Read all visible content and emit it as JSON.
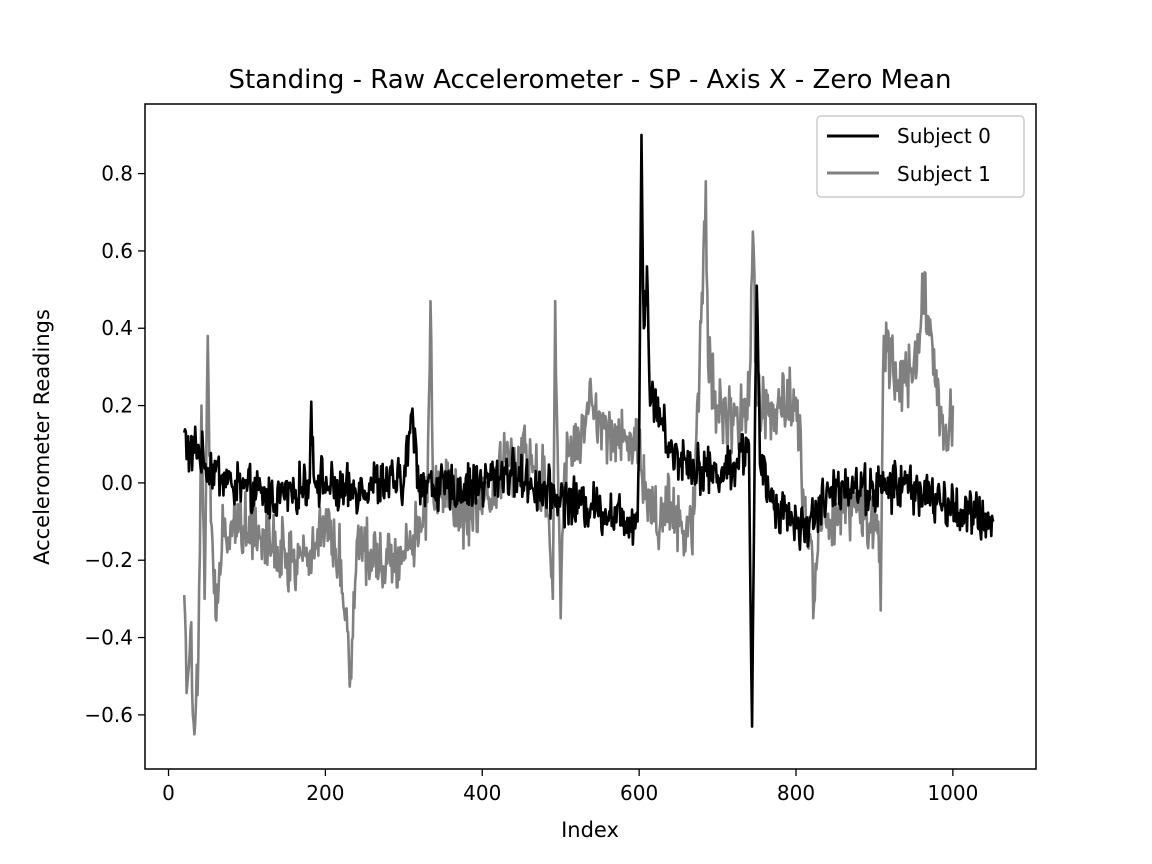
{
  "chart_data": {
    "type": "line",
    "title": "Standing - Raw Accelerometer - SP - Axis X - Zero Mean",
    "xlabel": "Index",
    "ylabel": "Accelerometer Readings",
    "xlim": [
      -30,
      1106
    ],
    "ylim": [
      -0.74,
      0.98
    ],
    "xticks": [
      0,
      200,
      400,
      600,
      800,
      1000
    ],
    "xtick_labels": [
      "0",
      "200",
      "400",
      "600",
      "800",
      "1000"
    ],
    "yticks": [
      -0.6,
      -0.4,
      -0.2,
      0.0,
      0.2,
      0.4,
      0.6,
      0.8
    ],
    "ytick_labels": [
      "−0.6",
      "−0.4",
      "−0.2",
      "0.0",
      "0.2",
      "0.4",
      "0.6",
      "0.8"
    ],
    "grid": false,
    "legend_position": "top-right",
    "series": [
      {
        "name": "Subject 0",
        "label": "Subject 0",
        "color": "#000000",
        "x_start": 20,
        "x_end": 1052,
        "anchors": [
          [
            20,
            0.13
          ],
          [
            28,
            0.06
          ],
          [
            35,
            0.1
          ],
          [
            45,
            0.05
          ],
          [
            60,
            0.03
          ],
          [
            80,
            0.0
          ],
          [
            100,
            -0.02
          ],
          [
            130,
            -0.04
          ],
          [
            160,
            -0.02
          ],
          [
            180,
            0.0
          ],
          [
            182,
            0.21
          ],
          [
            185,
            0.02
          ],
          [
            220,
            -0.03
          ],
          [
            260,
            0.0
          ],
          [
            300,
            0.0
          ],
          [
            310,
            0.18
          ],
          [
            320,
            0.0
          ],
          [
            360,
            -0.02
          ],
          [
            400,
            0.0
          ],
          [
            430,
            0.03
          ],
          [
            460,
            0.0
          ],
          [
            500,
            -0.04
          ],
          [
            540,
            -0.06
          ],
          [
            570,
            -0.08
          ],
          [
            598,
            -0.1
          ],
          [
            600,
            0.1
          ],
          [
            603,
            0.9
          ],
          [
            606,
            0.4
          ],
          [
            610,
            0.56
          ],
          [
            614,
            0.2
          ],
          [
            620,
            0.22
          ],
          [
            640,
            0.08
          ],
          [
            660,
            0.06
          ],
          [
            680,
            0.04
          ],
          [
            700,
            0.02
          ],
          [
            720,
            0.05
          ],
          [
            740,
            0.1
          ],
          [
            744,
            -0.63
          ],
          [
            747,
            0.0
          ],
          [
            750,
            0.51
          ],
          [
            754,
            0.05
          ],
          [
            770,
            -0.05
          ],
          [
            790,
            -0.08
          ],
          [
            810,
            -0.12
          ],
          [
            830,
            -0.06
          ],
          [
            860,
            0.0
          ],
          [
            900,
            -0.02
          ],
          [
            940,
            0.0
          ],
          [
            980,
            -0.05
          ],
          [
            1020,
            -0.08
          ],
          [
            1052,
            -0.1
          ]
        ],
        "noise": 0.05
      },
      {
        "name": "Subject 1",
        "label": "Subject 1",
        "color": "#808080",
        "x_start": 20,
        "x_end": 1000,
        "anchors": [
          [
            20,
            -0.29
          ],
          [
            24,
            -0.52
          ],
          [
            28,
            -0.38
          ],
          [
            32,
            -0.62
          ],
          [
            38,
            -0.45
          ],
          [
            42,
            0.2
          ],
          [
            46,
            -0.3
          ],
          [
            50,
            0.38
          ],
          [
            54,
            -0.1
          ],
          [
            60,
            -0.35
          ],
          [
            70,
            -0.12
          ],
          [
            90,
            -0.1
          ],
          [
            120,
            -0.12
          ],
          [
            150,
            -0.2
          ],
          [
            180,
            -0.18
          ],
          [
            200,
            -0.1
          ],
          [
            220,
            -0.2
          ],
          [
            232,
            -0.5
          ],
          [
            240,
            -0.15
          ],
          [
            260,
            -0.18
          ],
          [
            290,
            -0.2
          ],
          [
            310,
            -0.15
          ],
          [
            330,
            -0.05
          ],
          [
            334,
            0.47
          ],
          [
            338,
            -0.05
          ],
          [
            360,
            -0.02
          ],
          [
            380,
            -0.1
          ],
          [
            400,
            -0.08
          ],
          [
            420,
            0.0
          ],
          [
            430,
            0.1
          ],
          [
            440,
            0.05
          ],
          [
            460,
            0.05
          ],
          [
            480,
            0.0
          ],
          [
            490,
            -0.3
          ],
          [
            493,
            0.47
          ],
          [
            496,
            0.1
          ],
          [
            500,
            -0.35
          ],
          [
            505,
            0.05
          ],
          [
            520,
            0.1
          ],
          [
            540,
            0.2
          ],
          [
            560,
            0.12
          ],
          [
            580,
            0.12
          ],
          [
            600,
            0.1
          ],
          [
            610,
            -0.05
          ],
          [
            620,
            -0.1
          ],
          [
            640,
            -0.05
          ],
          [
            660,
            -0.12
          ],
          [
            670,
            -0.08
          ],
          [
            682,
            0.6
          ],
          [
            685,
            0.78
          ],
          [
            688,
            0.3
          ],
          [
            700,
            0.2
          ],
          [
            720,
            0.15
          ],
          [
            740,
            0.2
          ],
          [
            745,
            0.65
          ],
          [
            750,
            0.2
          ],
          [
            760,
            0.18
          ],
          [
            780,
            0.22
          ],
          [
            800,
            0.22
          ],
          [
            810,
            -0.05
          ],
          [
            820,
            -0.15
          ],
          [
            822,
            -0.35
          ],
          [
            830,
            -0.05
          ],
          [
            850,
            -0.08
          ],
          [
            880,
            -0.05
          ],
          [
            905,
            -0.1
          ],
          [
            908,
            -0.33
          ],
          [
            912,
            0.38
          ],
          [
            930,
            0.25
          ],
          [
            950,
            0.3
          ],
          [
            962,
            0.5
          ],
          [
            975,
            0.28
          ],
          [
            990,
            0.12
          ],
          [
            1000,
            0.2
          ]
        ],
        "noise": 0.07
      }
    ]
  }
}
